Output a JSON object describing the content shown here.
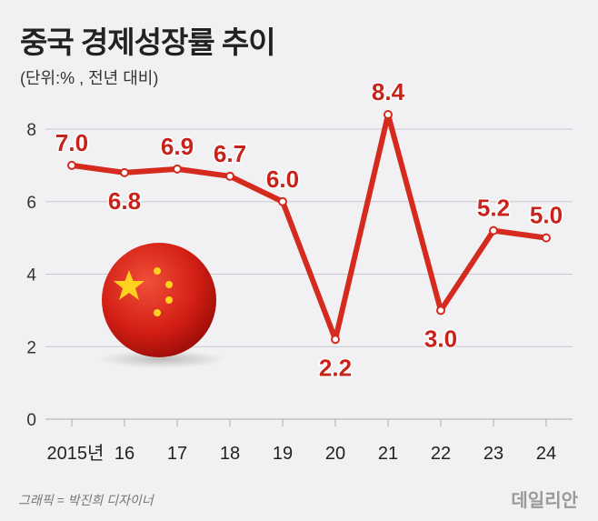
{
  "title": "중국 경제성장률 추이",
  "subtitle": "(단위:% , 전년 대비)",
  "credit": "그래픽 = 박진희 디자이너",
  "logo": "데일리안",
  "chart_data": {
    "type": "line",
    "categories": [
      "2015년",
      "16",
      "17",
      "18",
      "19",
      "20",
      "21",
      "22",
      "23",
      "24"
    ],
    "values": [
      7.0,
      6.8,
      6.9,
      6.7,
      6.0,
      2.2,
      8.4,
      3.0,
      5.2,
      5.0
    ],
    "value_labels": [
      "7.0",
      "6.8",
      "6.9",
      "6.7",
      "6.0",
      "2.2",
      "8.4",
      "3.0",
      "5.2",
      "5.0"
    ],
    "yticks": [
      0,
      2,
      4,
      6,
      8
    ],
    "ylim": [
      0,
      8
    ],
    "grid": true,
    "line_color": "#d52b1e",
    "label_color": "#c8231a"
  }
}
